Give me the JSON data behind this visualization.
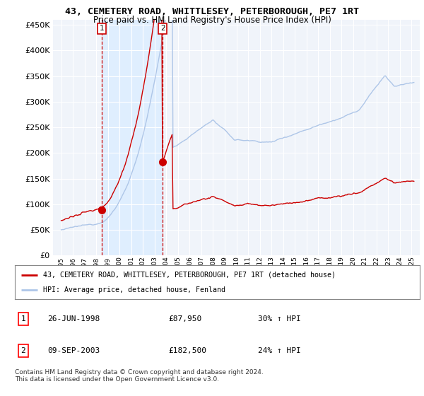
{
  "title": "43, CEMETERY ROAD, WHITTLESEY, PETERBOROUGH, PE7 1RT",
  "subtitle": "Price paid vs. HM Land Registry's House Price Index (HPI)",
  "legend_line1": "43, CEMETERY ROAD, WHITTLESEY, PETERBOROUGH, PE7 1RT (detached house)",
  "legend_line2": "HPI: Average price, detached house, Fenland",
  "transaction1_date": "26-JUN-1998",
  "transaction1_price": "£87,950",
  "transaction1_hpi": "30% ↑ HPI",
  "transaction2_date": "09-SEP-2003",
  "transaction2_price": "£182,500",
  "transaction2_hpi": "24% ↑ HPI",
  "copyright": "Contains HM Land Registry data © Crown copyright and database right 2024.\nThis data is licensed under the Open Government Licence v3.0.",
  "hpi_color": "#aec6e8",
  "price_color": "#cc0000",
  "marker_color": "#cc0000",
  "vline_color": "#cc0000",
  "shade_color": "#ddeeff",
  "ylim": [
    0,
    460000
  ],
  "yticks": [
    0,
    50000,
    100000,
    150000,
    200000,
    250000,
    300000,
    350000,
    400000,
    450000
  ],
  "background_color": "#ffffff",
  "plot_bg_color": "#f0f4fa",
  "grid_color": "#ffffff",
  "sale1_year": 1998.486,
  "sale1_price": 87950,
  "sale2_year": 2003.688,
  "sale2_price": 182500
}
